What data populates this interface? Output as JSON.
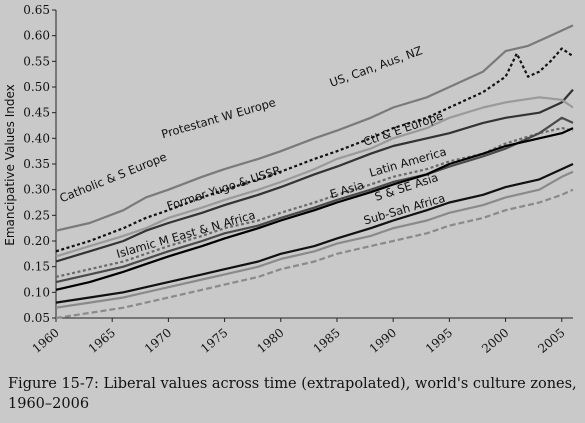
{
  "chart_data": {
    "type": "line",
    "ylabel": "Emancipative Values Index",
    "xlabel": "",
    "xlim": [
      1960,
      2006
    ],
    "ylim": [
      0.05,
      0.65
    ],
    "x_ticks": [
      "1960",
      "1965",
      "1970",
      "1975",
      "1980",
      "1985",
      "1990",
      "1995",
      "2000",
      "2005"
    ],
    "y_ticks": [
      "0.05",
      "0.10",
      "0.15",
      "0.20",
      "0.25",
      "0.30",
      "0.35",
      "0.40",
      "0.45",
      "0.50",
      "0.55",
      "0.60",
      "0.65"
    ],
    "grid": false,
    "series": [
      {
        "name": "Protestant W Europe",
        "color": "#7a7a7a",
        "dash": "",
        "x": [
          1960,
          1963,
          1966,
          1968,
          1970,
          1973,
          1975,
          1978,
          1980,
          1983,
          1985,
          1988,
          1990,
          1993,
          1995,
          1998,
          2000,
          2002,
          2004,
          2006
        ],
        "y": [
          0.22,
          0.235,
          0.26,
          0.285,
          0.3,
          0.325,
          0.34,
          0.36,
          0.375,
          0.4,
          0.415,
          0.44,
          0.46,
          0.48,
          0.5,
          0.53,
          0.57,
          0.58,
          0.6,
          0.62
        ]
      },
      {
        "name": "US, Can, Aus, NZ",
        "color": "#111111",
        "dash": "3,2.5",
        "x": [
          1960,
          1963,
          1966,
          1968,
          1970,
          1973,
          1975,
          1978,
          1980,
          1983,
          1985,
          1988,
          1990,
          1993,
          1995,
          1998,
          2000,
          2001,
          2002,
          2003,
          2004,
          2005,
          2006
        ],
        "y": [
          0.18,
          0.2,
          0.225,
          0.245,
          0.26,
          0.285,
          0.3,
          0.32,
          0.335,
          0.36,
          0.375,
          0.4,
          0.42,
          0.44,
          0.46,
          0.49,
          0.52,
          0.565,
          0.52,
          0.53,
          0.55,
          0.575,
          0.56
        ]
      },
      {
        "name": "Catholic & S Europe",
        "color": "#333333",
        "dash": "",
        "x": [
          1960,
          1963,
          1966,
          1968,
          1970,
          1973,
          1975,
          1978,
          1980,
          1983,
          1985,
          1988,
          1990,
          1993,
          1995,
          1998,
          2000,
          2003,
          2005,
          2006
        ],
        "y": [
          0.16,
          0.18,
          0.2,
          0.22,
          0.235,
          0.255,
          0.27,
          0.29,
          0.305,
          0.33,
          0.345,
          0.37,
          0.385,
          0.4,
          0.41,
          0.43,
          0.44,
          0.45,
          0.47,
          0.495
        ]
      },
      {
        "name": "Ctl & E Europe",
        "color": "#9a9a9a",
        "dash": "",
        "x": [
          1960,
          1963,
          1966,
          1968,
          1970,
          1973,
          1975,
          1978,
          1980,
          1983,
          1985,
          1988,
          1990,
          1993,
          1995,
          1998,
          2000,
          2003,
          2005,
          2006
        ],
        "y": [
          0.17,
          0.19,
          0.21,
          0.225,
          0.245,
          0.265,
          0.28,
          0.3,
          0.315,
          0.34,
          0.36,
          0.38,
          0.4,
          0.42,
          0.44,
          0.46,
          0.47,
          0.48,
          0.475,
          0.46
        ]
      },
      {
        "name": "Former Yugo & USSR",
        "color": "#6b6b6b",
        "dash": "3,2.5",
        "x": [
          1960,
          1963,
          1966,
          1968,
          1970,
          1973,
          1975,
          1978,
          1980,
          1983,
          1985,
          1988,
          1990,
          1993,
          1995,
          1998,
          2000,
          2003,
          2005,
          2006
        ],
        "y": [
          0.13,
          0.145,
          0.16,
          0.175,
          0.19,
          0.21,
          0.225,
          0.24,
          0.255,
          0.275,
          0.29,
          0.31,
          0.325,
          0.34,
          0.355,
          0.37,
          0.39,
          0.41,
          0.42,
          0.415
        ]
      },
      {
        "name": "Latin America",
        "color": "#4a4a4a",
        "dash": "",
        "x": [
          1960,
          1963,
          1966,
          1968,
          1970,
          1973,
          1975,
          1978,
          1980,
          1983,
          1985,
          1988,
          1990,
          1993,
          1995,
          1998,
          2000,
          2003,
          2005,
          2006
        ],
        "y": [
          0.12,
          0.135,
          0.15,
          0.165,
          0.18,
          0.2,
          0.215,
          0.23,
          0.245,
          0.265,
          0.28,
          0.3,
          0.315,
          0.33,
          0.345,
          0.365,
          0.38,
          0.41,
          0.44,
          0.43
        ]
      },
      {
        "name": "E Asia",
        "color": "#000000",
        "dash": "",
        "x": [
          1960,
          1963,
          1966,
          1968,
          1970,
          1973,
          1975,
          1978,
          1980,
          1983,
          1985,
          1988,
          1990,
          1993,
          1995,
          1998,
          2000,
          2003,
          2005,
          2006
        ],
        "y": [
          0.105,
          0.12,
          0.14,
          0.155,
          0.17,
          0.19,
          0.205,
          0.225,
          0.24,
          0.26,
          0.275,
          0.295,
          0.31,
          0.33,
          0.35,
          0.37,
          0.385,
          0.4,
          0.41,
          0.42
        ]
      },
      {
        "name": "S & SE Asia",
        "color": "#111111",
        "dash": "",
        "x": [
          1960,
          1963,
          1966,
          1968,
          1970,
          1973,
          1975,
          1978,
          1980,
          1983,
          1985,
          1988,
          1990,
          1993,
          1995,
          1998,
          2000,
          2003,
          2005,
          2006
        ],
        "y": [
          0.08,
          0.09,
          0.1,
          0.11,
          0.12,
          0.135,
          0.145,
          0.16,
          0.175,
          0.19,
          0.205,
          0.225,
          0.24,
          0.26,
          0.275,
          0.29,
          0.305,
          0.32,
          0.34,
          0.35
        ]
      },
      {
        "name": "Sub-Sah Africa",
        "color": "#8a8a8a",
        "dash": "",
        "x": [
          1960,
          1963,
          1966,
          1968,
          1970,
          1973,
          1975,
          1978,
          1980,
          1983,
          1985,
          1988,
          1990,
          1993,
          1995,
          1998,
          2000,
          2003,
          2005,
          2006
        ],
        "y": [
          0.07,
          0.08,
          0.09,
          0.1,
          0.11,
          0.125,
          0.135,
          0.15,
          0.165,
          0.18,
          0.195,
          0.21,
          0.225,
          0.24,
          0.255,
          0.27,
          0.285,
          0.3,
          0.325,
          0.335
        ]
      },
      {
        "name": "Islamic M East & N Africa",
        "color": "#8a8a8a",
        "dash": "6,3",
        "x": [
          1960,
          1963,
          1966,
          1968,
          1970,
          1973,
          1975,
          1978,
          1980,
          1983,
          1985,
          1988,
          1990,
          1993,
          1995,
          1998,
          2000,
          2003,
          2005,
          2006
        ],
        "y": [
          0.05,
          0.06,
          0.07,
          0.08,
          0.09,
          0.105,
          0.115,
          0.13,
          0.145,
          0.16,
          0.175,
          0.19,
          0.2,
          0.215,
          0.23,
          0.245,
          0.26,
          0.275,
          0.29,
          0.3
        ]
      }
    ],
    "annotations": [
      {
        "text": "Protestant W Europe",
        "x": 1969.5,
        "y": 0.4,
        "angle": -16
      },
      {
        "text": "US, Can, Aus, NZ",
        "x": 1984.5,
        "y": 0.5,
        "angle": -20
      },
      {
        "text": "Catholic & S Europe",
        "x": 1960.5,
        "y": 0.275,
        "angle": -22
      },
      {
        "text": "Ctl & E Europe",
        "x": 1987.5,
        "y": 0.385,
        "angle": -19
      },
      {
        "text": "Former Yugo & USSR",
        "x": 1970,
        "y": 0.26,
        "angle": -18
      },
      {
        "text": "Latin America",
        "x": 1988,
        "y": 0.325,
        "angle": -16
      },
      {
        "text": "E Asia",
        "x": 1984.5,
        "y": 0.283,
        "angle": -17
      },
      {
        "text": "S & SE Asia",
        "x": 1988.5,
        "y": 0.278,
        "angle": -18
      },
      {
        "text": "Sub-Sah Africa",
        "x": 1987.5,
        "y": 0.232,
        "angle": -16
      },
      {
        "text": "Islamic M East & N Africa",
        "x": 1965.5,
        "y": 0.167,
        "angle": -16
      }
    ]
  },
  "caption": "Figure 15-7: Liberal values across time (extrapolated), world's culture zones, 1960–2006"
}
